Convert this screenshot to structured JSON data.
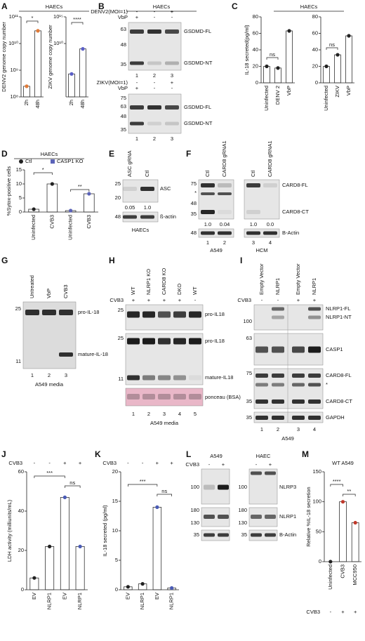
{
  "panel_letters": [
    "A",
    "B",
    "C",
    "D",
    "E",
    "F",
    "G",
    "H",
    "I",
    "J",
    "K",
    "L",
    "M"
  ],
  "headers": {
    "A": "HAECs",
    "B": "HAECs",
    "C": "HAECs",
    "D": "HAECs"
  },
  "chart_data": [
    {
      "type": "bar",
      "ylabel": "DENV2 genome copy number",
      "categories": [
        "2h",
        "48h"
      ],
      "values": [
        250000000.0,
        30000000000.0
      ],
      "color": "#e07b39",
      "log_scale": true,
      "ylim": [
        100000000.0,
        100000000000.0
      ],
      "yticks": [
        {
          "value": 100000000.0,
          "label": "10⁸"
        },
        {
          "value": 1000000000.0,
          "label": "10⁹"
        },
        {
          "value": 10000000000.0,
          "label": "10¹⁰"
        },
        {
          "value": 100000000000.0,
          "label": "10¹¹"
        }
      ],
      "annotations": [
        "*"
      ]
    },
    {
      "type": "bar",
      "ylabel": "ZIKV genome copy number",
      "categories": [
        "2h",
        "48h"
      ],
      "values": [
        20000.0,
        1000000000.0
      ],
      "color": "#5b5fc7",
      "log_scale": true,
      "ylim": [
        1,
        1000000000000000.0
      ],
      "yticks": [
        {
          "value": 10000000000.0,
          "label": "10¹⁰"
        },
        {
          "value": 1000000000000000.0,
          "label": "10¹⁵"
        }
      ],
      "annotations": [
        "****"
      ]
    },
    {
      "type": "bar",
      "ylabel": "IL-18 secreted(pg/ml)",
      "categories": [
        "Uninfected",
        "DENV 2",
        "VbP"
      ],
      "values": [
        20,
        18,
        63
      ],
      "color": "#222222",
      "ylim": [
        0,
        80
      ],
      "yticks": [
        0,
        20,
        40,
        60,
        80
      ],
      "annotations": [
        "ns"
      ]
    },
    {
      "type": "bar",
      "categories": [
        "Uninfected",
        "ZIKV",
        "VbP"
      ],
      "values": [
        20,
        34,
        57
      ],
      "color": "#222222",
      "ylim": [
        0,
        80
      ],
      "yticks": [
        0,
        20,
        40,
        60,
        80
      ],
      "annotations": [
        "ns"
      ]
    },
    {
      "type": "bar",
      "ylabel": "%Sytox-positive cells",
      "categories": [
        "Uninfected",
        "CVB3",
        "Uninfected",
        "CVB3"
      ],
      "series": [
        {
          "name": "Ctl",
          "color": "#222222",
          "values": [
            1,
            10,
            null,
            null
          ]
        },
        {
          "name": "CASP1 KO",
          "color": "#5b63b8",
          "values": [
            null,
            null,
            0.5,
            6.5
          ]
        }
      ],
      "ylim": [
        0,
        15
      ],
      "yticks": [
        0,
        5,
        10,
        15
      ],
      "annotations": [
        "*",
        "**"
      ]
    },
    {
      "type": "bar",
      "ylabel": "LDH activity (milliunits/mL)",
      "categories": [
        "EV",
        "NLRP1",
        "EV",
        "NLRP1"
      ],
      "values": [
        6,
        22,
        47,
        22
      ],
      "colors": [
        "#222222",
        "#222222",
        "#4a5bb5",
        "#4a5bb5"
      ],
      "condition_label": "CVB3",
      "condition": [
        "-",
        "-",
        "+",
        "+"
      ],
      "ylim": [
        0,
        60
      ],
      "yticks": [
        0,
        20,
        40,
        60
      ],
      "annotations": [
        "***",
        "ns"
      ]
    },
    {
      "type": "bar",
      "ylabel": "IL-18 secreted (pg/ml)",
      "categories": [
        "EV",
        "NLRP1",
        "EV",
        "NLRP1"
      ],
      "values": [
        0.5,
        1,
        14,
        0.3
      ],
      "colors": [
        "#222222",
        "#222222",
        "#4a5bb5",
        "#4a5bb5"
      ],
      "condition_label": "CVB3",
      "condition": [
        "-",
        "-",
        "+",
        "+"
      ],
      "ylim": [
        0,
        20
      ],
      "yticks": [
        0,
        5,
        10,
        15,
        20
      ],
      "annotations": [
        "***",
        "ns"
      ]
    },
    {
      "type": "bar",
      "title": "WT A549",
      "ylabel": "Relative %IL-18 secretion",
      "categories": [
        "Uninfected",
        "CVB3",
        "MCC950"
      ],
      "values": [
        0,
        100,
        65
      ],
      "colors": [
        "#222222",
        "#c0392b",
        "#c0392b"
      ],
      "condition_label": "CVB3",
      "condition": [
        "-",
        "+",
        "+"
      ],
      "ylim": [
        0,
        150
      ],
      "yticks": [
        0,
        50,
        100,
        150
      ],
      "annotations": [
        "****",
        "**"
      ]
    }
  ],
  "B": {
    "top": {
      "rows": [
        {
          "label": "DENV2(MOI=1)",
          "signs": [
            "-",
            "-",
            "+"
          ]
        },
        {
          "label": "VbP",
          "signs": [
            "+",
            "-",
            "-"
          ]
        }
      ],
      "markers": [
        "63",
        "48",
        "35"
      ],
      "bands": [
        "GSDMD-FL",
        "GSDMD-NT"
      ],
      "lanes": [
        "1",
        "2",
        "3"
      ]
    },
    "bottom": {
      "rows": [
        {
          "label": "ZIKV(MOI=1)",
          "signs": [
            "-",
            "-",
            "+"
          ]
        },
        {
          "label": "VbP",
          "signs": [
            "+",
            "-",
            "-"
          ]
        }
      ],
      "markers": [
        "75",
        "63",
        "48",
        "35"
      ],
      "bands": [
        "GSDMD-FL",
        "GSDMD-NT"
      ],
      "lanes": [
        "1",
        "2",
        "3"
      ]
    }
  },
  "E": {
    "columns": [
      "ASC gRNA",
      "Ctl"
    ],
    "markers": [
      "25",
      "20"
    ],
    "band": "ASC",
    "quant": [
      "0.05",
      "1.0"
    ],
    "actin_marker": "48",
    "actin": "ß-actin",
    "cells": "HAECs"
  },
  "F": {
    "columns": [
      "Ctl",
      "CARD8 gRNA1",
      "Ctl",
      "CARD8 gRNA1"
    ],
    "markers": [
      "75",
      "*",
      "48",
      "35"
    ],
    "bands": [
      "CARD8-FL",
      "CARD8-CT"
    ],
    "quant": [
      "1.0",
      "0.04",
      "1.0",
      "0.0"
    ],
    "actin_marker": "48",
    "actin": "B-Actin",
    "lanes": [
      "1",
      "2",
      "3",
      "4"
    ],
    "cells": [
      "A549",
      "HCM"
    ]
  },
  "G": {
    "columns": [
      "Untreated",
      "VbP",
      "CVB3"
    ],
    "markers": [
      "25",
      "11"
    ],
    "bands": [
      "pro-IL-18",
      "mature-IL-18"
    ],
    "lanes": [
      "1",
      "2",
      "3"
    ],
    "footer": "A549 media"
  },
  "H": {
    "columns": [
      "WT",
      "NLRP1 KO",
      "CARD8 KO",
      "DKO",
      "WT"
    ],
    "condition": "CVB3",
    "signs": [
      "+",
      "+",
      "+",
      "+",
      "-"
    ],
    "markers": [
      "25",
      "25",
      "11"
    ],
    "bands": [
      "pro-IL18",
      "pro-IL18",
      "mature-IL18"
    ],
    "stain": "ponceau (BSA)",
    "lanes": [
      "1",
      "2",
      "3",
      "4",
      "5"
    ],
    "footer": "A549 media"
  },
  "I": {
    "columns": [
      "Empty Vector",
      "NLRP1",
      "Empty Vector",
      "NLRP1"
    ],
    "condition": "CVB3",
    "signs": [
      "-",
      "-",
      "+",
      "+"
    ],
    "markers": [
      "100",
      "63",
      "75",
      "35",
      "35"
    ],
    "bands": [
      "NLRP1-FL",
      "NLRP1-NT",
      "CASP1",
      "CARD8-FL",
      "*",
      "CARD8-CT",
      "GAPDH"
    ],
    "lanes": [
      "1",
      "2",
      "3",
      "4"
    ],
    "cells": "A549"
  },
  "L": {
    "cells": [
      "A549",
      "HAEC"
    ],
    "condition": "CVB3",
    "signs": [
      "-",
      "+",
      "-",
      "+"
    ],
    "markers": [
      "100",
      "180",
      "130",
      "35"
    ],
    "markers2": [
      "100",
      "180",
      "130",
      "35"
    ],
    "bands": [
      "NLRP3",
      "NLRP1",
      "B-Actin"
    ]
  }
}
